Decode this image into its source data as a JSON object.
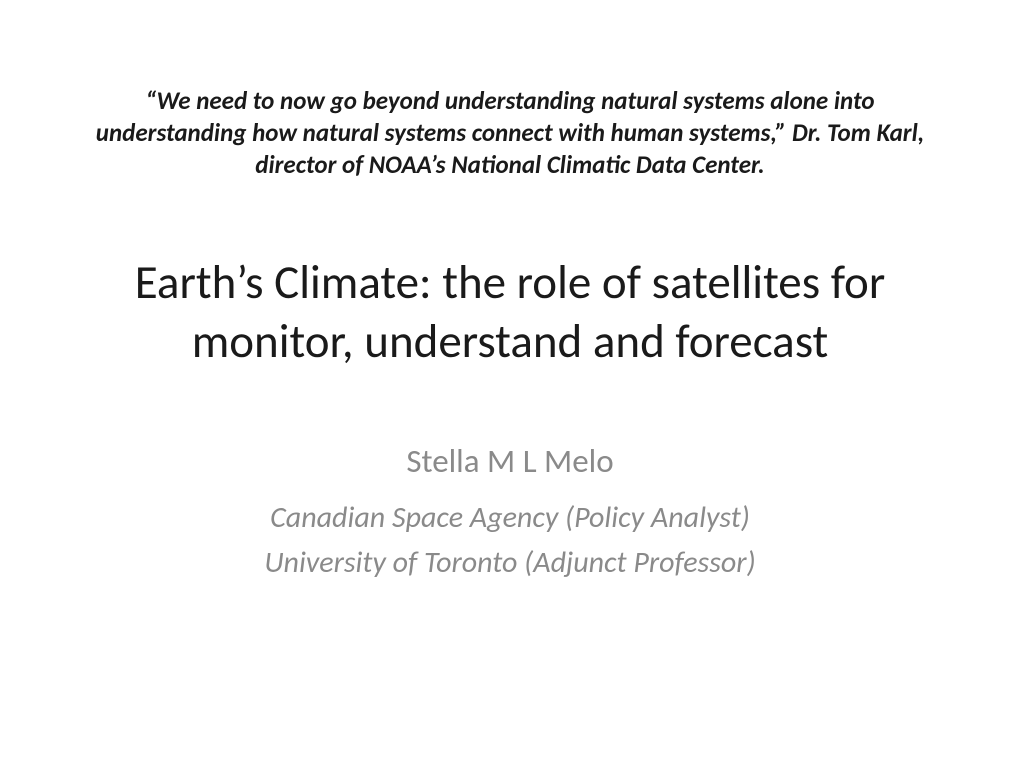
{
  "slide": {
    "quote": "“We need to now go beyond understanding natural systems alone into understanding how natural systems connect with human systems,” Dr. Tom Karl, director of NOAA’s National Climatic Data Center.",
    "title": "Earth’s Climate: the role of satellites for monitor, understand and forecast",
    "author": "Stella M L Melo",
    "affiliation1": "Canadian Space Agency (Policy Analyst)",
    "affiliation2": "University of Toronto (Adjunct Professor)"
  },
  "styling": {
    "background_color": "#ffffff",
    "quote_color": "#1a1a1a",
    "quote_fontsize": 25,
    "quote_fontweight": "bold",
    "quote_fontstyle": "italic",
    "title_color": "#1a1a1a",
    "title_fontsize": 47,
    "title_fontweight": "normal",
    "author_color": "#8a8a8a",
    "author_fontsize": 33,
    "affiliation_color": "#8a8a8a",
    "affiliation_fontsize": 30,
    "affiliation_fontstyle": "italic",
    "font_family": "Calibri"
  }
}
